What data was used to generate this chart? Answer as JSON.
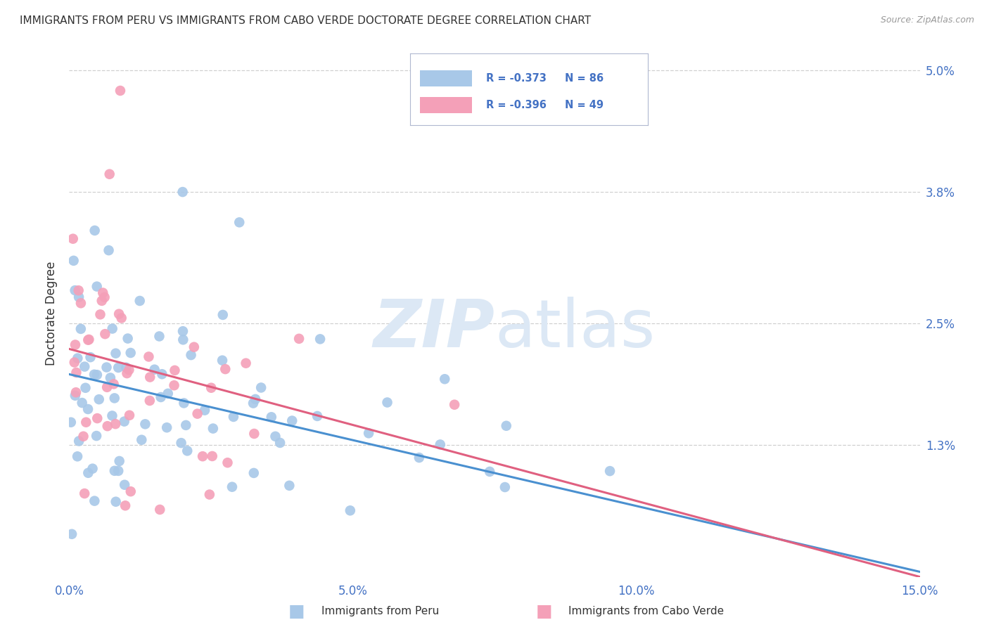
{
  "title": "IMMIGRANTS FROM PERU VS IMMIGRANTS FROM CABO VERDE DOCTORATE DEGREE CORRELATION CHART",
  "source": "Source: ZipAtlas.com",
  "ylabel": "Doctorate Degree",
  "x_min": 0.0,
  "x_max": 0.15,
  "y_min": 0.0,
  "y_max": 0.052,
  "y_ticks": [
    0.013,
    0.025,
    0.038,
    0.05
  ],
  "y_tick_labels": [
    "1.3%",
    "2.5%",
    "3.8%",
    "5.0%"
  ],
  "x_ticks": [
    0.0,
    0.05,
    0.1,
    0.15
  ],
  "x_tick_labels": [
    "0.0%",
    "5.0%",
    "10.0%",
    "15.0%"
  ],
  "legend_labels": [
    "Immigrants from Peru",
    "Immigrants from Cabo Verde"
  ],
  "legend_R_peru": "R = -0.373",
  "legend_R_cabo": "R = -0.396",
  "legend_N_peru": "N = 86",
  "legend_N_cabo": "N = 49",
  "color_peru": "#a8c8e8",
  "color_cabo": "#f4a0b8",
  "line_color_peru": "#4a90d0",
  "line_color_cabo": "#e06080",
  "background_color": "#ffffff",
  "grid_color": "#d0d0d0",
  "text_color_blue": "#4472c4",
  "title_color": "#333333",
  "watermark_color": "#dce8f5",
  "peru_line_intercept": 0.02,
  "peru_line_slope": -0.13,
  "cabo_line_intercept": 0.0225,
  "cabo_line_slope": -0.15
}
